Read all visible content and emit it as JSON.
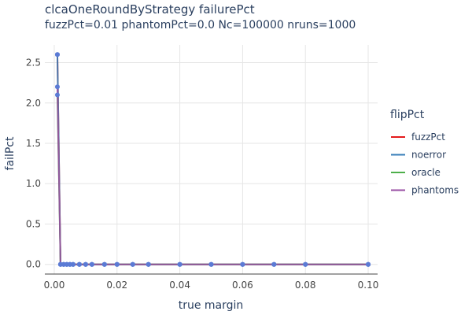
{
  "chart_data": {
    "type": "line",
    "title": "clcaOneRoundByStrategy failurePct",
    "subtitle": "fuzzPct=0.01 phantomPct=0.0 Nc=100000 nruns=1000",
    "xlabel": "true margin",
    "ylabel": "failPct",
    "xlim": [
      -0.003,
      0.103
    ],
    "ylim": [
      -0.12,
      2.72
    ],
    "xticks": [
      0.0,
      0.02,
      0.04,
      0.06,
      0.08,
      0.1
    ],
    "xtick_labels": [
      "0.00",
      "0.02",
      "0.04",
      "0.06",
      "0.08",
      "0.10"
    ],
    "yticks": [
      0.0,
      0.5,
      1.0,
      1.5,
      2.0,
      2.5
    ],
    "ytick_labels": [
      "0.0",
      "0.5",
      "1.0",
      "1.5",
      "2.0",
      "2.5"
    ],
    "grid": true,
    "legend_title": "flipPct",
    "legend_position": "right",
    "series": [
      {
        "name": "fuzzPct",
        "color": "#e41a1c",
        "x": [
          0.001,
          0.002,
          0.003,
          0.004,
          0.005,
          0.006,
          0.008,
          0.01,
          0.012,
          0.016,
          0.02,
          0.025,
          0.03,
          0.04,
          0.05,
          0.06,
          0.07,
          0.08,
          0.1
        ],
        "y": [
          2.6,
          0.0,
          0.0,
          0.0,
          0.0,
          0.0,
          0.0,
          0.0,
          0.0,
          0.0,
          0.0,
          0.0,
          0.0,
          0.0,
          0.0,
          0.0,
          0.0,
          0.0,
          0.0
        ]
      },
      {
        "name": "noerror",
        "color": "#377eb8",
        "x": [
          0.001,
          0.002,
          0.003,
          0.004,
          0.005,
          0.006,
          0.008,
          0.01,
          0.012,
          0.016,
          0.02,
          0.025,
          0.03,
          0.04,
          0.05,
          0.06,
          0.07,
          0.08,
          0.1
        ],
        "y": [
          2.6,
          0.0,
          0.0,
          0.0,
          0.0,
          0.0,
          0.0,
          0.0,
          0.0,
          0.0,
          0.0,
          0.0,
          0.0,
          0.0,
          0.0,
          0.0,
          0.0,
          0.0,
          0.0
        ]
      },
      {
        "name": "oracle",
        "color": "#4daf4a",
        "x": [
          0.001,
          0.002,
          0.003,
          0.004,
          0.005,
          0.006,
          0.008,
          0.01,
          0.012,
          0.016,
          0.02,
          0.025,
          0.03,
          0.04,
          0.05,
          0.06,
          0.07,
          0.08,
          0.1
        ],
        "y": [
          2.1,
          0.0,
          0.0,
          0.0,
          0.0,
          0.0,
          0.0,
          0.0,
          0.0,
          0.0,
          0.0,
          0.0,
          0.0,
          0.0,
          0.0,
          0.0,
          0.0,
          0.0,
          0.0
        ]
      },
      {
        "name": "phantoms",
        "color": "#984ea3",
        "x": [
          0.001,
          0.002,
          0.003,
          0.004,
          0.005,
          0.006,
          0.008,
          0.01,
          0.012,
          0.016,
          0.02,
          0.025,
          0.03,
          0.04,
          0.05,
          0.06,
          0.07,
          0.08,
          0.1
        ],
        "y": [
          2.2,
          0.0,
          0.0,
          0.0,
          0.0,
          0.0,
          0.0,
          0.0,
          0.0,
          0.0,
          0.0,
          0.0,
          0.0,
          0.0,
          0.0,
          0.0,
          0.0,
          0.0,
          0.0
        ]
      }
    ],
    "marker_color": "#5b7bd5"
  }
}
